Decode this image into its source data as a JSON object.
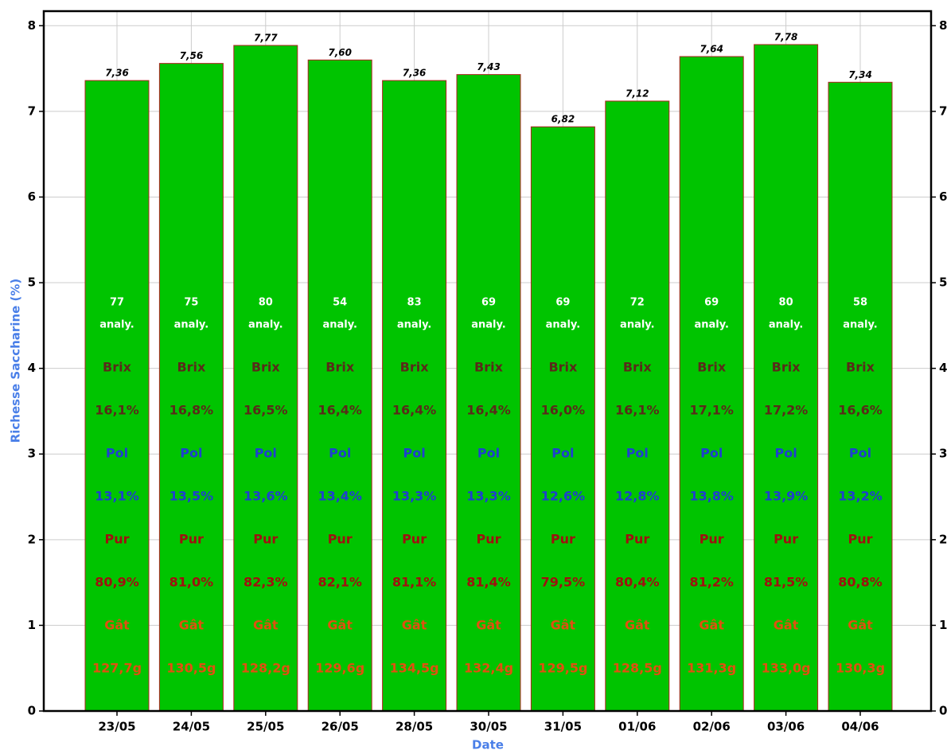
{
  "chart_data": {
    "type": "bar",
    "categories": [
      "23/05",
      "24/05",
      "25/05",
      "26/05",
      "28/05",
      "30/05",
      "31/05",
      "01/06",
      "02/06",
      "03/06",
      "04/06"
    ],
    "values": [
      7.36,
      7.56,
      7.77,
      7.6,
      7.36,
      7.43,
      6.82,
      7.12,
      7.64,
      7.78,
      7.34
    ],
    "value_labels": [
      "7,36",
      "7,56",
      "7,77",
      "7,60",
      "7,36",
      "7,43",
      "6,82",
      "7,12",
      "7,64",
      "7,78",
      "7,34"
    ],
    "color": "#00c400",
    "edge_color": "#b22222",
    "ylabel": "Richesse Saccharine (%)",
    "xlabel": "Date",
    "ylim": [
      0,
      8.17
    ],
    "yticks": [
      0,
      1,
      2,
      3,
      4,
      5,
      6,
      7,
      8
    ],
    "y2lim": [
      0,
      8.17
    ],
    "y2ticks": [
      0,
      1,
      2,
      3,
      4,
      5,
      6,
      7,
      8
    ],
    "grid": true,
    "bar_labels": [
      {
        "name": "count",
        "color": "#ffffff",
        "values": [
          77,
          75,
          80,
          54,
          83,
          69,
          69,
          72,
          69,
          80,
          58
        ]
      },
      {
        "name": "count-unit",
        "color": "#ffffff",
        "text": "analy."
      },
      {
        "name": "brix-label",
        "color": "#5a2a1a",
        "text": "Brix"
      },
      {
        "name": "brix",
        "color": "#5a2a1a",
        "values": [
          "16,1%",
          "16,8%",
          "16,5%",
          "16,4%",
          "16,4%",
          "16,4%",
          "16,0%",
          "16,1%",
          "17,1%",
          "17,2%",
          "16,6%"
        ]
      },
      {
        "name": "pol-label",
        "color": "#1f3fd0",
        "text": "Pol"
      },
      {
        "name": "pol",
        "color": "#1f3fd0",
        "values": [
          "13,1%",
          "13,5%",
          "13,6%",
          "13,4%",
          "13,3%",
          "13,3%",
          "12,6%",
          "12,8%",
          "13,8%",
          "13,9%",
          "13,2%"
        ]
      },
      {
        "name": "pur-label",
        "color": "#a01010",
        "text": "Pur"
      },
      {
        "name": "pur",
        "color": "#a01010",
        "values": [
          "80,9%",
          "81,0%",
          "82,3%",
          "82,1%",
          "81,1%",
          "81,4%",
          "79,5%",
          "80,4%",
          "81,2%",
          "81,5%",
          "80,8%"
        ]
      },
      {
        "name": "gat-label",
        "color": "#e05010",
        "text": "Gât"
      },
      {
        "name": "gat",
        "color": "#e05010",
        "values": [
          "127,7g",
          "130,5g",
          "128,2g",
          "129,6g",
          "134,5g",
          "132,4g",
          "129,5g",
          "128,5g",
          "131,3g",
          "133,0g",
          "130,3g"
        ]
      }
    ]
  }
}
